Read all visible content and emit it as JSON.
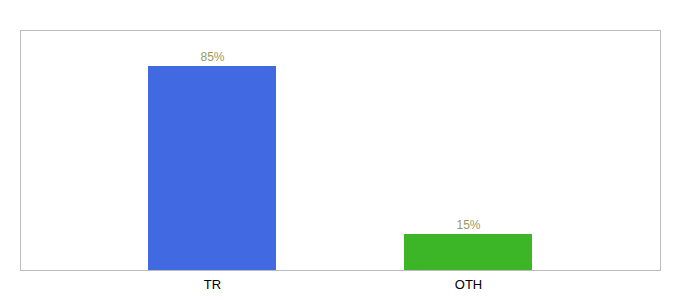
{
  "chart_data": {
    "type": "bar",
    "categories": [
      "TR",
      "OTH"
    ],
    "values": [
      85,
      15
    ],
    "value_labels": [
      "85%",
      "15%"
    ],
    "colors": [
      "#4169e1",
      "#3cb526"
    ],
    "ylim": [
      0,
      100
    ],
    "data_labels": true,
    "tick_labels": "x",
    "grid": false
  }
}
